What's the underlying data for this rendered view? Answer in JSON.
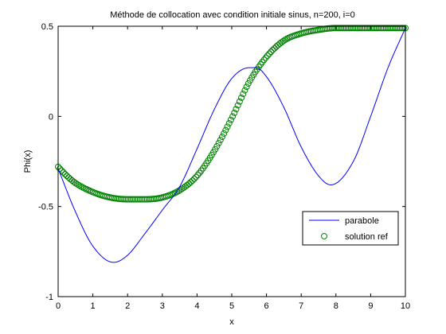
{
  "chart_data": {
    "type": "line",
    "title": "Méthode de collocation avec condition initiale sinus, n=200, i=0",
    "xlabel": "x",
    "ylabel": "Phi(x)",
    "xlim": [
      0,
      10
    ],
    "ylim": [
      -1,
      0.5
    ],
    "xticks": [
      "0",
      "1",
      "2",
      "3",
      "4",
      "5",
      "6",
      "7",
      "8",
      "9",
      "10"
    ],
    "yticks": [
      "-1",
      "-0.5",
      "0",
      "0.5"
    ],
    "grid": false,
    "legend_position": "lower-right",
    "series": [
      {
        "name": "parabole",
        "style": "line",
        "color": "#0000ff",
        "x": [
          0,
          0.5,
          1,
          1.6,
          2,
          2.5,
          3,
          3.5,
          4,
          4.5,
          5,
          5.5,
          5.7,
          6,
          6.5,
          7,
          7.5,
          7.85,
          8.5,
          9,
          9.5,
          10
        ],
        "y": [
          -0.29,
          -0.53,
          -0.72,
          -0.81,
          -0.77,
          -0.65,
          -0.52,
          -0.39,
          -0.18,
          0.04,
          0.21,
          0.27,
          0.27,
          0.22,
          0.05,
          -0.17,
          -0.33,
          -0.38,
          -0.25,
          0.0,
          0.27,
          0.49
        ]
      },
      {
        "name": "solution ref",
        "style": "markers",
        "marker": "circle",
        "color": "#008000",
        "points": 200,
        "x": [
          0,
          0.25,
          0.5,
          1,
          1.5,
          2,
          2.5,
          3,
          3.5,
          4,
          4.5,
          5,
          5.5,
          6,
          6.5,
          7,
          7.5,
          8,
          8.5,
          9,
          9.5,
          10
        ],
        "y": [
          -0.28,
          -0.33,
          -0.37,
          -0.42,
          -0.45,
          -0.46,
          -0.46,
          -0.45,
          -0.41,
          -0.33,
          -0.19,
          -0.01,
          0.19,
          0.33,
          0.42,
          0.46,
          0.48,
          0.49,
          0.49,
          0.49,
          0.49,
          0.49
        ]
      }
    ]
  }
}
